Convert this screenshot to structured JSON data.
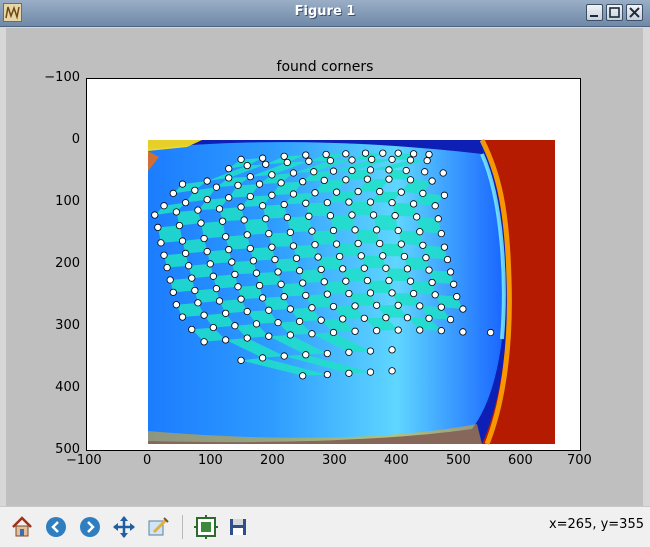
{
  "window": {
    "title": "Figure 1"
  },
  "figure": {
    "title": "found corners",
    "x_ticks": [
      "−100",
      "0",
      "100",
      "200",
      "300",
      "400",
      "500",
      "600",
      "700"
    ],
    "y_ticks": [
      "−100",
      "0",
      "100",
      "200",
      "300",
      "400",
      "500"
    ]
  },
  "toolbar": {
    "buttons": [
      "home",
      "back",
      "forward",
      "pan",
      "zoom",
      "subplots",
      "save"
    ],
    "coords": "x=265, y=355"
  },
  "chart_data": {
    "type": "scatter",
    "title": "found corners",
    "xlabel": "",
    "ylabel": "",
    "xlim": [
      -100,
      700
    ],
    "ylim": [
      500,
      -100
    ],
    "image_extent": [
      0,
      655,
      0,
      490
    ],
    "colormap": "jet",
    "grid": [
      {
        "row": 0,
        "x": [
          150,
          185,
          220,
          255,
          288,
          320,
          352,
          380,
          405,
          430,
          455
        ],
        "y": [
          30,
          28,
          25,
          23,
          22,
          21,
          20,
          20,
          20,
          21,
          22
        ]
      },
      {
        "row": 1,
        "x": [
          130,
          160,
          190,
          225,
          260,
          295,
          330,
          362,
          395,
          425,
          452
        ],
        "y": [
          45,
          40,
          38,
          35,
          33,
          32,
          31,
          30,
          30,
          31,
          32
        ]
      },
      {
        "row": 2,
        "x": [
          55,
          95,
          130,
          165,
          200,
          235,
          268,
          300,
          330,
          360,
          390,
          418,
          448,
          478
        ],
        "y": [
          70,
          65,
          60,
          58,
          55,
          52,
          50,
          49,
          48,
          47,
          47,
          48,
          50,
          52
        ]
      },
      {
        "row": 3,
        "x": [
          40,
          75,
          110,
          145,
          180,
          215,
          250,
          285,
          320,
          355,
          390,
          425,
          460
        ],
        "y": [
          85,
          80,
          75,
          72,
          70,
          68,
          66,
          64,
          63,
          62,
          62,
          63,
          65
        ]
      },
      {
        "row": 4,
        "x": [
          25,
          60,
          95,
          130,
          165,
          200,
          235,
          270,
          305,
          340,
          375,
          410,
          445,
          480
        ],
        "y": [
          105,
          100,
          95,
          92,
          90,
          88,
          86,
          84,
          83,
          82,
          82,
          83,
          85,
          88
        ]
      },
      {
        "row": 5,
        "x": [
          10,
          45,
          80,
          115,
          150,
          185,
          220,
          255,
          290,
          325,
          360,
          395,
          430,
          465
        ],
        "y": [
          120,
          115,
          112,
          110,
          107,
          105,
          103,
          101,
          100,
          99,
          99,
          100,
          102,
          105
        ]
      },
      {
        "row": 6,
        "x": [
          15,
          50,
          85,
          120,
          155,
          190,
          225,
          260,
          295,
          330,
          365,
          400,
          435,
          470
        ],
        "y": [
          140,
          137,
          133,
          130,
          128,
          126,
          124,
          122,
          121,
          120,
          120,
          121,
          123,
          126
        ]
      },
      {
        "row": 7,
        "x": [
          20,
          55,
          90,
          125,
          160,
          195,
          230,
          265,
          300,
          335,
          370,
          405,
          440,
          475
        ],
        "y": [
          165,
          162,
          158,
          155,
          152,
          150,
          148,
          146,
          145,
          144,
          144,
          145,
          147,
          150
        ]
      },
      {
        "row": 8,
        "x": [
          25,
          60,
          95,
          130,
          165,
          200,
          235,
          270,
          305,
          340,
          375,
          410,
          445,
          480
        ],
        "y": [
          185,
          182,
          179,
          176,
          174,
          172,
          170,
          168,
          167,
          166,
          166,
          167,
          169,
          172
        ]
      },
      {
        "row": 9,
        "x": [
          30,
          65,
          100,
          135,
          170,
          205,
          240,
          275,
          310,
          345,
          380,
          415,
          450,
          485
        ],
        "y": [
          205,
          202,
          199,
          196,
          194,
          192,
          190,
          188,
          187,
          186,
          186,
          187,
          189,
          192
        ]
      },
      {
        "row": 10,
        "x": [
          35,
          70,
          105,
          140,
          175,
          210,
          245,
          280,
          315,
          350,
          385,
          420,
          455,
          490
        ],
        "y": [
          225,
          222,
          219,
          216,
          214,
          212,
          210,
          208,
          207,
          206,
          206,
          207,
          209,
          212
        ]
      },
      {
        "row": 11,
        "x": [
          40,
          75,
          110,
          145,
          180,
          215,
          250,
          285,
          320,
          355,
          390,
          425,
          460,
          495
        ],
        "y": [
          245,
          242,
          239,
          236,
          234,
          232,
          230,
          228,
          227,
          226,
          226,
          227,
          229,
          232
        ]
      },
      {
        "row": 12,
        "x": [
          45,
          80,
          115,
          150,
          185,
          220,
          255,
          290,
          325,
          360,
          395,
          430,
          465,
          500
        ],
        "y": [
          265,
          262,
          259,
          256,
          254,
          252,
          250,
          248,
          247,
          246,
          246,
          247,
          249,
          252
        ]
      },
      {
        "row": 13,
        "x": [
          55,
          90,
          125,
          160,
          195,
          230,
          265,
          300,
          335,
          370,
          405,
          440,
          475,
          510
        ],
        "y": [
          285,
          282,
          279,
          276,
          274,
          272,
          270,
          268,
          267,
          266,
          266,
          267,
          269,
          272
        ]
      },
      {
        "row": 14,
        "x": [
          70,
          105,
          140,
          175,
          210,
          245,
          280,
          315,
          350,
          385,
          420,
          455,
          490,
          555
        ],
        "y": [
          305,
          302,
          299,
          296,
          294,
          292,
          290,
          288,
          287,
          286,
          286,
          287,
          289,
          310
        ]
      },
      {
        "row": 15,
        "x": [
          90,
          125,
          160,
          195,
          230,
          265,
          300,
          335,
          370,
          405,
          440,
          475,
          510
        ],
        "y": [
          325,
          322,
          319,
          316,
          314,
          312,
          310,
          308,
          307,
          306,
          306,
          307,
          309
        ]
      },
      {
        "row": 16,
        "x": [
          150,
          185,
          220,
          255,
          290,
          325,
          360,
          395
        ],
        "y": [
          355,
          351,
          348,
          346,
          344,
          342,
          340,
          338
        ]
      },
      {
        "row": 17,
        "x": [
          250,
          290,
          325,
          360,
          395
        ],
        "y": [
          380,
          378,
          376,
          374,
          372
        ]
      }
    ]
  }
}
